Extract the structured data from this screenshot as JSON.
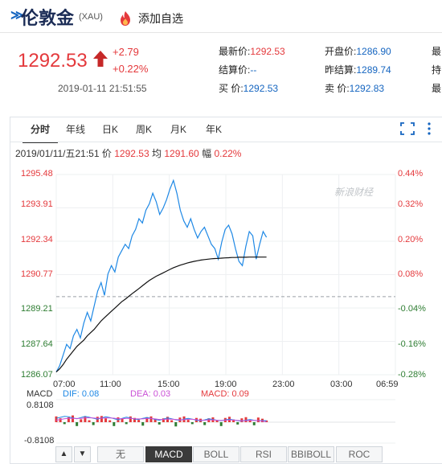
{
  "header": {
    "title": "伦敦金",
    "code": "(XAU)",
    "favorite_label": "添加自选"
  },
  "quote": {
    "price": "1292.53",
    "change": "+2.79",
    "change_pct": "+0.22%",
    "timestamp": "2019-01-11 21:51:55"
  },
  "stats": [
    {
      "label": "最新价:",
      "value": "1292.53",
      "tone": "up"
    },
    {
      "label": "开盘价:",
      "value": "1286.90",
      "tone": "blue"
    },
    {
      "label": "最",
      "value": "",
      "tone": "up"
    },
    {
      "label": "结算价:",
      "value": "--",
      "tone": "blue"
    },
    {
      "label": "昨结算:",
      "value": "1289.74",
      "tone": "blue"
    },
    {
      "label": "持",
      "value": "",
      "tone": "up"
    },
    {
      "label": "买  价:",
      "value": "1292.53",
      "tone": "blue"
    },
    {
      "label": "卖  价:",
      "value": "1292.83",
      "tone": "blue"
    },
    {
      "label": "最",
      "value": "",
      "tone": "up"
    }
  ],
  "tabs": [
    "分时",
    "年线",
    "日K",
    "周K",
    "月K",
    "年K"
  ],
  "chart_info": {
    "datetime": "2019/01/11/五21:51",
    "price_label": "价",
    "price": "1292.53",
    "avg_label": "均",
    "avg": "1291.60",
    "amp_label": "幅",
    "amp": "0.22%"
  },
  "watermark": "新浪财经",
  "colors": {
    "up": "#e4393c",
    "down": "#2e7d32",
    "price_line": "#1e88e5",
    "avg_line": "#111111"
  },
  "chart_data": {
    "type": "line",
    "y_ticks": [
      "1295.48",
      "1293.91",
      "1292.34",
      "1290.77",
      "1289.21",
      "1287.64",
      "1286.07"
    ],
    "y_right_ticks": [
      "0.44%",
      "0.32%",
      "0.20%",
      "0.08%",
      "-0.04%",
      "-0.16%",
      "-0.28%"
    ],
    "x_ticks": [
      "07:00",
      "11:00",
      "15:00",
      "19:00",
      "23:00",
      "03:00",
      "06:59"
    ],
    "ylim": [
      1286.07,
      1295.48
    ],
    "prev_settle": 1289.74,
    "series": [
      {
        "name": "价",
        "values": [
          1286.2,
          1286.5,
          1287.0,
          1287.5,
          1287.3,
          1287.9,
          1288.2,
          1287.8,
          1288.5,
          1289.0,
          1288.6,
          1289.3,
          1290.0,
          1290.4,
          1289.8,
          1290.8,
          1291.2,
          1290.9,
          1291.6,
          1291.9,
          1292.2,
          1292.0,
          1292.6,
          1292.9,
          1293.4,
          1293.2,
          1293.8,
          1294.1,
          1294.6,
          1294.2,
          1293.6,
          1293.9,
          1294.3,
          1294.8,
          1295.2,
          1294.6,
          1293.8,
          1293.3,
          1293.0,
          1293.4,
          1292.9,
          1292.5,
          1292.8,
          1293.0,
          1292.6,
          1292.2,
          1292.0,
          1291.5,
          1292.3,
          1292.9,
          1293.1,
          1292.7,
          1292.0,
          1291.4,
          1291.2,
          1292.1,
          1292.8,
          1292.6,
          1291.5,
          1292.2,
          1292.8,
          1292.53
        ]
      },
      {
        "name": "均",
        "values": [
          1286.2,
          1286.35,
          1286.55,
          1286.8,
          1287.0,
          1287.2,
          1287.4,
          1287.55,
          1287.7,
          1287.9,
          1288.05,
          1288.2,
          1288.4,
          1288.6,
          1288.75,
          1288.9,
          1289.05,
          1289.2,
          1289.35,
          1289.5,
          1289.62,
          1289.75,
          1289.88,
          1290.0,
          1290.12,
          1290.25,
          1290.38,
          1290.5,
          1290.6,
          1290.7,
          1290.78,
          1290.86,
          1290.94,
          1291.02,
          1291.1,
          1291.16,
          1291.22,
          1291.27,
          1291.32,
          1291.36,
          1291.4,
          1291.43,
          1291.46,
          1291.48,
          1291.5,
          1291.52,
          1291.53,
          1291.54,
          1291.55,
          1291.56,
          1291.57,
          1291.58,
          1291.58,
          1291.59,
          1291.59,
          1291.59,
          1291.6,
          1291.6,
          1291.6,
          1291.6,
          1291.6,
          1291.6
        ]
      }
    ],
    "sessions": 12
  },
  "macd": {
    "label": "MACD",
    "dif_label": "DIF: 0.08",
    "dea_label": "DEA: 0.03",
    "macd_label": "MACD: 0.09",
    "ymax": "0.8108",
    "ymin": "-0.8108",
    "chart_data": {
      "type": "bar",
      "values": [
        0.3,
        0.2,
        -0.1,
        0.25,
        0.35,
        -0.2,
        0.15,
        0.3,
        0.1,
        -0.15,
        0.28,
        0.32,
        0.2,
        0.1,
        -0.2,
        0.25,
        0.18,
        -0.1,
        0.3,
        0.22,
        0.12,
        -0.18,
        0.26,
        0.3,
        0.16,
        -0.12,
        0.2,
        0.28,
        0.1,
        -0.22,
        0.24,
        0.3,
        0.12,
        -0.1,
        0.22,
        0.18,
        -0.15,
        0.2,
        0.25,
        0.1,
        -0.2,
        0.22,
        0.28,
        0.14,
        -0.12,
        0.2,
        0.26,
        0.1,
        -0.16,
        0.24,
        0.18,
        0.09
      ],
      "dif": [
        0.2,
        0.25,
        0.3,
        0.28,
        0.22,
        0.18,
        0.24,
        0.3,
        0.26,
        0.2,
        0.16,
        0.22,
        0.28,
        0.24,
        0.18,
        0.12,
        0.2,
        0.26,
        0.22,
        0.16,
        0.14,
        0.2,
        0.24,
        0.2,
        0.14,
        0.1,
        0.16,
        0.22,
        0.18,
        0.12,
        0.1,
        0.16,
        0.2,
        0.16,
        0.1,
        0.08,
        0.12,
        0.18,
        0.14,
        0.1,
        0.08,
        0.12,
        0.16,
        0.12,
        0.08,
        0.06,
        0.1,
        0.14,
        0.1,
        0.08,
        0.08,
        0.08
      ],
      "dea": [
        0.1,
        0.14,
        0.18,
        0.2,
        0.2,
        0.19,
        0.2,
        0.22,
        0.23,
        0.22,
        0.2,
        0.21,
        0.22,
        0.22,
        0.21,
        0.18,
        0.18,
        0.2,
        0.2,
        0.18,
        0.17,
        0.17,
        0.19,
        0.19,
        0.17,
        0.14,
        0.14,
        0.16,
        0.16,
        0.14,
        0.12,
        0.13,
        0.15,
        0.15,
        0.13,
        0.1,
        0.1,
        0.12,
        0.12,
        0.1,
        0.09,
        0.1,
        0.12,
        0.11,
        0.09,
        0.07,
        0.08,
        0.1,
        0.09,
        0.08,
        0.06,
        0.03
      ]
    }
  },
  "indicator_nav": {
    "prev": "▲",
    "next": "▼"
  },
  "indicators": [
    "无",
    "MACD",
    "BOLL",
    "RSI",
    "BBIBOLL",
    "ROC"
  ]
}
